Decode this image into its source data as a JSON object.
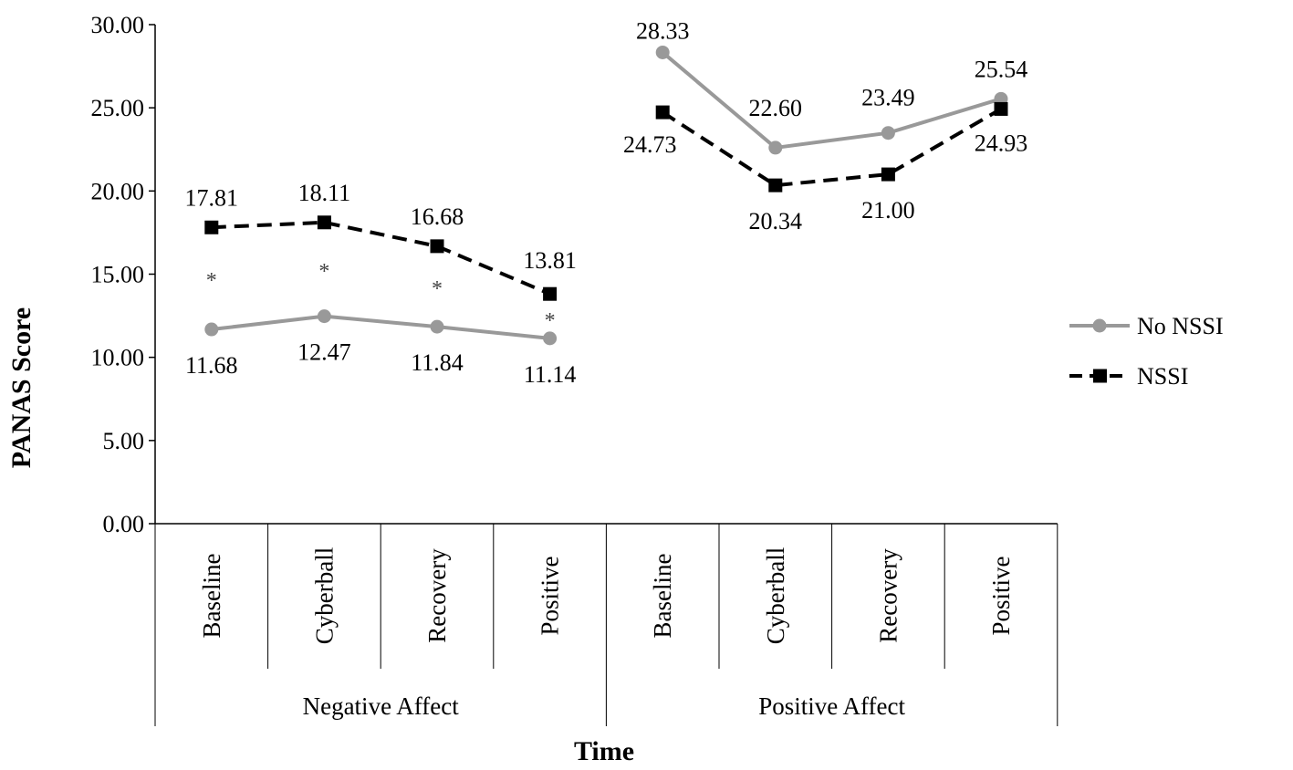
{
  "chart_data": {
    "type": "line",
    "title": "",
    "xlabel": "Time",
    "ylabel": "PANAS Score",
    "ylim": [
      0,
      30
    ],
    "yticks": [
      "0.00",
      "5.00",
      "10.00",
      "15.00",
      "20.00",
      "25.00",
      "30.00"
    ],
    "groups": [
      {
        "name": "Negative Affect",
        "categories": [
          "Baseline",
          "Cyberball",
          "Recovery",
          "Positive"
        ]
      },
      {
        "name": "Positive Affect",
        "categories": [
          "Baseline",
          "Cyberball",
          "Recovery",
          "Positive"
        ]
      }
    ],
    "series": [
      {
        "name": "No NSSI",
        "color": "#999999",
        "style": "solid",
        "marker": "circle",
        "groups": [
          {
            "values": [
              11.68,
              12.47,
              11.84,
              11.14
            ],
            "labels": [
              "11.68",
              "12.47",
              "11.84",
              "11.14"
            ]
          },
          {
            "values": [
              28.33,
              22.6,
              23.49,
              25.54
            ],
            "labels": [
              "28.33",
              "22.60",
              "23.49",
              "25.54"
            ]
          }
        ]
      },
      {
        "name": "NSSI",
        "color": "#000000",
        "style": "dashed",
        "marker": "square",
        "groups": [
          {
            "values": [
              17.81,
              18.11,
              16.68,
              13.81
            ],
            "labels": [
              "17.81",
              "18.11",
              "16.68",
              "13.81"
            ]
          },
          {
            "values": [
              24.73,
              20.34,
              21.0,
              24.93
            ],
            "labels": [
              "24.73",
              "20.34",
              "21.00",
              "24.93"
            ]
          }
        ]
      }
    ],
    "significance_marker": "*",
    "significant_points": [
      [
        0,
        0
      ],
      [
        0,
        1
      ],
      [
        0,
        2
      ],
      [
        0,
        3
      ]
    ],
    "legend": "right"
  }
}
